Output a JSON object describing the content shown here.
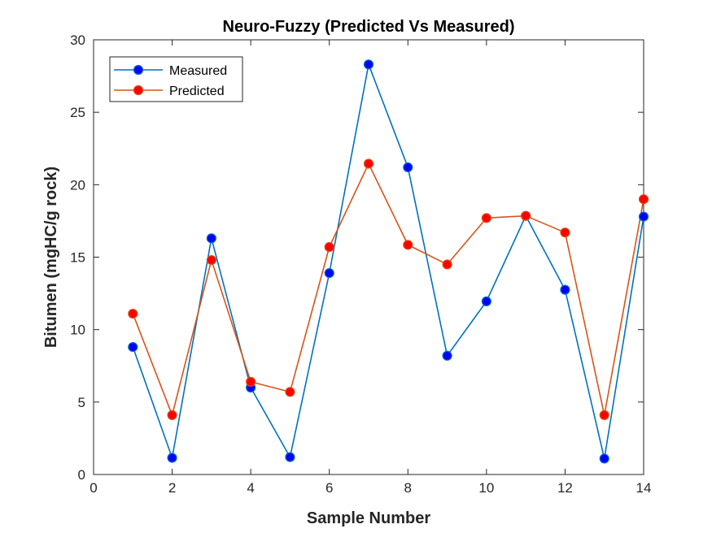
{
  "chart_data": {
    "type": "line",
    "title": "Neuro-Fuzzy (Predicted Vs Measured)",
    "xlabel": "Sample Number",
    "ylabel": "Bitumen (mgHC/g rock)",
    "xlim": [
      0,
      14
    ],
    "ylim": [
      0,
      30
    ],
    "xticks": [
      0,
      2,
      4,
      6,
      8,
      10,
      12,
      14
    ],
    "yticks": [
      0,
      5,
      10,
      15,
      20,
      25,
      30
    ],
    "grid": false,
    "legend_position": "top-left",
    "x": [
      1,
      2,
      3,
      4,
      5,
      6,
      7,
      8,
      9,
      10,
      11,
      12,
      13,
      14
    ],
    "series": [
      {
        "name": "Measured",
        "line_color": "#0072BD",
        "marker_color": "#0000FF",
        "values": [
          8.8,
          1.15,
          16.3,
          6.0,
          1.2,
          13.9,
          28.3,
          21.2,
          8.2,
          11.95,
          17.85,
          12.75,
          1.1,
          17.8
        ]
      },
      {
        "name": "Predicted",
        "line_color": "#D95319",
        "marker_color": "#FF0000",
        "values": [
          11.1,
          4.1,
          14.8,
          6.4,
          5.7,
          15.7,
          21.45,
          15.85,
          14.5,
          17.7,
          17.85,
          16.7,
          4.1,
          19.0
        ]
      }
    ]
  }
}
